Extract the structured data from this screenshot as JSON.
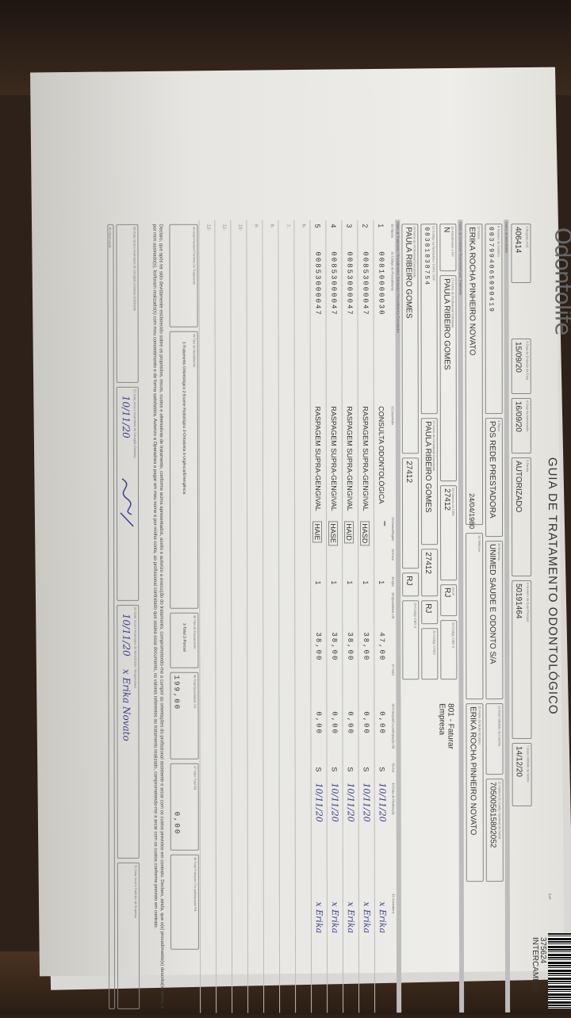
{
  "header": {
    "logo": "Odontolife",
    "title": "GUIA DE TRATAMENTO ODONTOLÓGICO",
    "page": "2-nº",
    "guide_number": "375624",
    "guide_type": "INTERCAMBIO"
  },
  "guide": {
    "ans_label": "1-Registro ANS",
    "ans": "406414",
    "issue_label": "3-Data de Emissão da Guia",
    "issue_date": "15/09/20",
    "auth_label": "4-Data da Autorização",
    "auth_date": "16/09/20",
    "password_label": "5-Senha",
    "password": "AUTORIZADO",
    "main_guide_label": "6-Número da Guia Principal",
    "main_guide": "50191464",
    "validity_label": "7-Data Validade da Senha",
    "validity": "14/12/20"
  },
  "beneficiary": {
    "section": "Dados do Beneficiário",
    "card_label": "8-Número da Carteira",
    "card": "0037994065090419",
    "plan_label": "9-Plano",
    "plan": "POS REDE PRESTADORA",
    "company_label": "10-Empresa",
    "company": "UNIMED SAUDE E ODONTO S/A",
    "card_validity_label": "11-Data Validade da Carteira",
    "cns_label": "12-Número do Cartão Nacional de Saúde",
    "cns": "705005615802052",
    "name_label": "13-Nome",
    "name": "ERIKA ROCHA PINHEIRO NOVATO",
    "birth": "24/04/1980",
    "phone_label": "14-Telefone",
    "holder_label": "15-Nome do titular do plano",
    "holder": "ERIKA ROCHA PINHEIRO NOVATO"
  },
  "contractor": {
    "section": "Dados do Contratado Responsável pelo Tratamento",
    "rn_label": "16-Atendimento a RN",
    "rn": "N",
    "requester_label": "17-Nome do Profissional Solicitante",
    "requester": "PAULA RIBEIRO GOMES",
    "cro_label": "18-Número no CRO",
    "cro": "27412",
    "uf_label": "19-UF",
    "uf": "RJ",
    "cbo_label": "20-Código CBO S",
    "billing": "801 - Faturar Empresa",
    "cpf_label": "21-Código na Operadora / CNPJ / CPF",
    "cpf": "08381838754",
    "contracted_label": "22-Nome do Contratado Executante",
    "contracted": "PAULA RIBEIRO GOMES",
    "cro2": "27412",
    "uf2": "RJ",
    "cnes_label": "25-Código CNES",
    "executor_label": "26-Nome do Profissional Executante",
    "executor": "PAULA RIBEIRO GOMES",
    "cro3": "27412",
    "uf3": "RJ",
    "cbo3_label": "29-Código CBO S"
  },
  "procedures": {
    "section": "Plano de Tratamento / Procedimentos Solicitados / Procedimentos Executados",
    "columns": [
      "30-Tabela",
      "31-Código do Procedimento",
      "32-Descrição",
      "33-Dente/Região",
      "34-Face",
      "35-Qtd",
      "36-Quantidade US",
      "37-Valor",
      "38-Franquia/Co-participação R$",
      "39-Aut",
      "40-Data de Realização",
      "41-Assinatura"
    ],
    "rows": [
      {
        "n": "1",
        "code": "00810000030",
        "desc": "CONSULTA ODONTOLÓGICA",
        "region": "",
        "qty": "1",
        "value": "47,00",
        "franchise": "0,00",
        "aut": "S",
        "date": "10/11/20",
        "sign": "x Erika"
      },
      {
        "n": "2",
        "code": "00853000047",
        "desc": "RASPAGEM SUPRA-GENGIVAL",
        "region": "HASD",
        "qty": "1",
        "value": "38,00",
        "franchise": "0,00",
        "aut": "S",
        "date": "10/11/20",
        "sign": "x Erika"
      },
      {
        "n": "3",
        "code": "00853000047",
        "desc": "RASPAGEM SUPRA-GENGIVAL",
        "region": "HAID",
        "qty": "1",
        "value": "38,00",
        "franchise": "0,00",
        "aut": "S",
        "date": "10/11/20",
        "sign": "x Erika"
      },
      {
        "n": "4",
        "code": "00853000047",
        "desc": "RASPAGEM SUPRA-GENGIVAL",
        "region": "HASE",
        "qty": "1",
        "value": "38,00",
        "franchise": "0,00",
        "aut": "S",
        "date": "10/11/20",
        "sign": "x Erika"
      },
      {
        "n": "5",
        "code": "00853000047",
        "desc": "RASPAGEM SUPRA-GENGIVAL",
        "region": "HAIE",
        "qty": "1",
        "value": "38,00",
        "franchise": "0,00",
        "aut": "S",
        "date": "10/11/20",
        "sign": "x Erika"
      }
    ]
  },
  "totals": {
    "period_label": "43-Data Provável Término do Tratamento",
    "service_type_label": "44-Tipo de Atendimento",
    "service_types": "1-Tratamento Odontológico 2-Exame Radiológico 3-Ortodontia 4-Urgência/Emergência",
    "billing_type_label": "45-Tipo de Faturamento",
    "billing_types": "1-Total 2-Parcial",
    "total_us_label": "46-Total Quantidade US",
    "total_us": "199,00",
    "total_value_label": "47-Valor Total R$",
    "total_value": "0,00",
    "total_franchise_label": "48-Total Franquia / Co-participação R$"
  },
  "declaration": "Declaro, que após ter sido devidamente esclarecido sobre os propósitos, riscos, custos e alternativas de tratamento, conforme acima apresentados, aceito e autorizo a execução do tratamento, comprometendo-me a cumprir as orientações do profissional assistente e arcar com os custos previstos em contrato. Declaro, ainda, que o(s) procedimento(s) descrito(s) acima, e por mim assinado(s), foi/foram realizado(s) com meu consentimento e de forma satisfatória. Autorizo a Operadora a pagar em meu nome e por minha conta, ao profissional contratado que assina esse documento, os valores referentes ao tratamento realizado, comprometendo-me a arcar com os custos conforme previsto em contrato.",
  "signatures": {
    "place_label": "50-Data, local e Assinatura do Cirurgião-Dentista Solicitante",
    "dentist_label": "51-Data, local e Assinatura do Cirurgião-Dentista",
    "dentist_date": "10/11/20",
    "beneficiary_label": "52-Data, local e Assinatura do Beneficiário / Responsável",
    "beneficiary_date": "10/11/20",
    "beneficiary_sign": "x Erika Novato",
    "company_label": "53-Data, local e Carimbo da Empresa",
    "obs_label": "49-Observação"
  }
}
